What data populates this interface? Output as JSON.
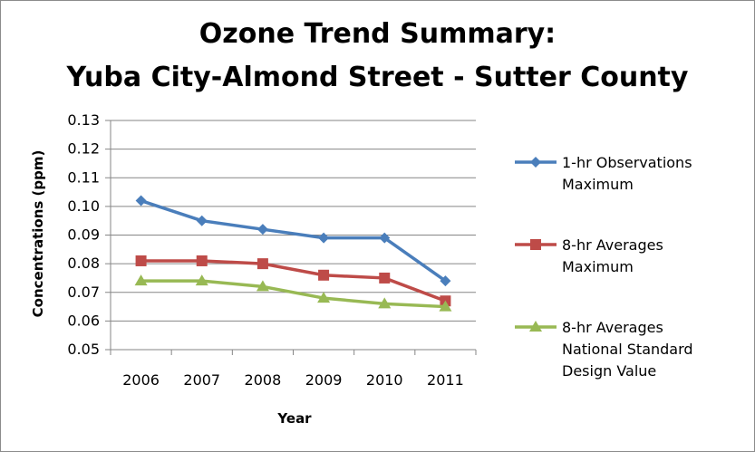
{
  "chart_data": {
    "type": "line",
    "title_lines": [
      "Ozone Trend Summary:",
      "Yuba City-Almond Street - Sutter County"
    ],
    "xlabel": "Year",
    "ylabel": "Concentrations (ppm)",
    "categories": [
      "2006",
      "2007",
      "2008",
      "2009",
      "2010",
      "2011"
    ],
    "ylim": [
      0.05,
      0.13
    ],
    "yticks": [
      "0.05",
      "0.06",
      "0.07",
      "0.08",
      "0.09",
      "0.10",
      "0.11",
      "0.12",
      "0.13"
    ],
    "grid": "horizontal",
    "legend_position": "right",
    "series": [
      {
        "name_lines": [
          "1-hr Observations",
          "Maximum"
        ],
        "values": [
          0.102,
          0.095,
          0.092,
          0.089,
          0.089,
          0.074
        ],
        "color": "#4a7ebb",
        "marker": "diamond"
      },
      {
        "name_lines": [
          "8-hr Averages",
          "Maximum"
        ],
        "values": [
          0.081,
          0.081,
          0.08,
          0.076,
          0.075,
          0.067
        ],
        "color": "#be4b48",
        "marker": "square"
      },
      {
        "name_lines": [
          "8-hr Averages",
          "National Standard",
          "Design Value"
        ],
        "values": [
          0.074,
          0.074,
          0.072,
          0.068,
          0.066,
          0.065
        ],
        "color": "#98b954",
        "marker": "triangle"
      }
    ]
  }
}
